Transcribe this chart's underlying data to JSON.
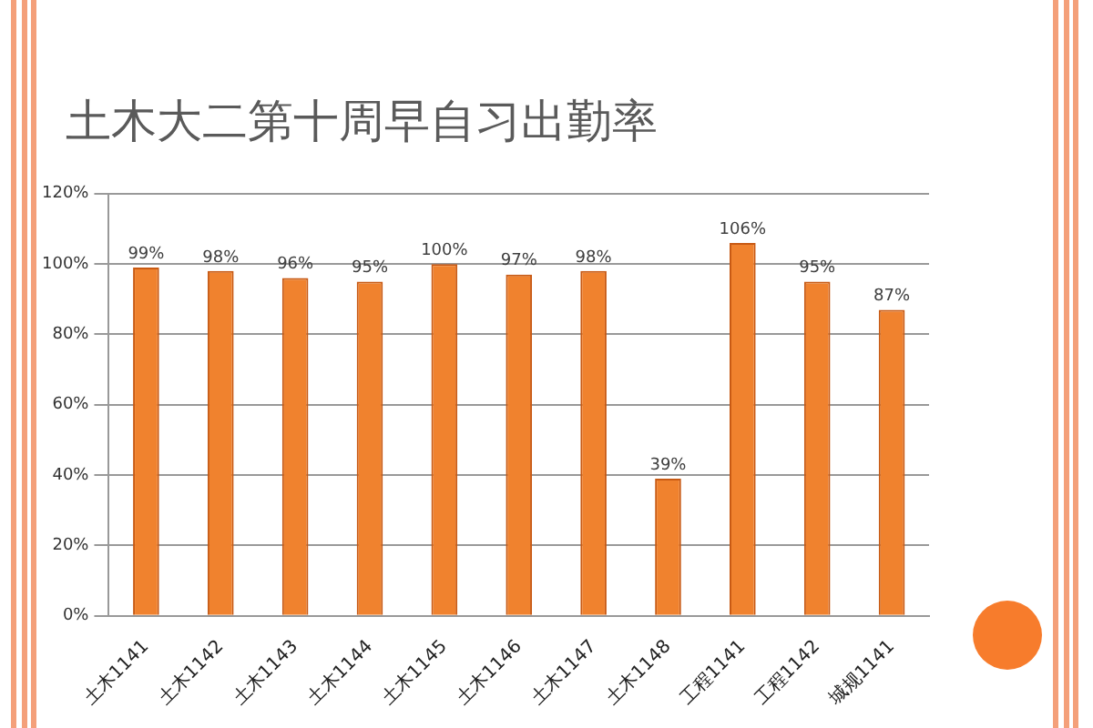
{
  "chart_data": {
    "type": "bar",
    "title": "土木大二第十周早自习出勤率",
    "categories": [
      "土木1141",
      "土木1142",
      "土木1143",
      "土木1144",
      "土木1145",
      "土木1146",
      "土木1147",
      "土木1148",
      "工程1141",
      "工程1142",
      "城规1141"
    ],
    "values": [
      99,
      98,
      96,
      95,
      100,
      97,
      98,
      39,
      106,
      95,
      87
    ],
    "value_labels": [
      "99%",
      "98%",
      "96%",
      "95%",
      "100%",
      "97%",
      "98%",
      "39%",
      "106%",
      "95%",
      "87%"
    ],
    "color": "#f0822e",
    "ylim": [
      0,
      120
    ],
    "yticks": [
      {
        "value": 0,
        "label": "0%"
      },
      {
        "value": 20,
        "label": "20%"
      },
      {
        "value": 40,
        "label": "40%"
      },
      {
        "value": 60,
        "label": "60%"
      },
      {
        "value": 80,
        "label": "80%"
      },
      {
        "value": 100,
        "label": "100%"
      },
      {
        "value": 120,
        "label": "120%"
      }
    ],
    "grid": "y",
    "legend": false
  }
}
